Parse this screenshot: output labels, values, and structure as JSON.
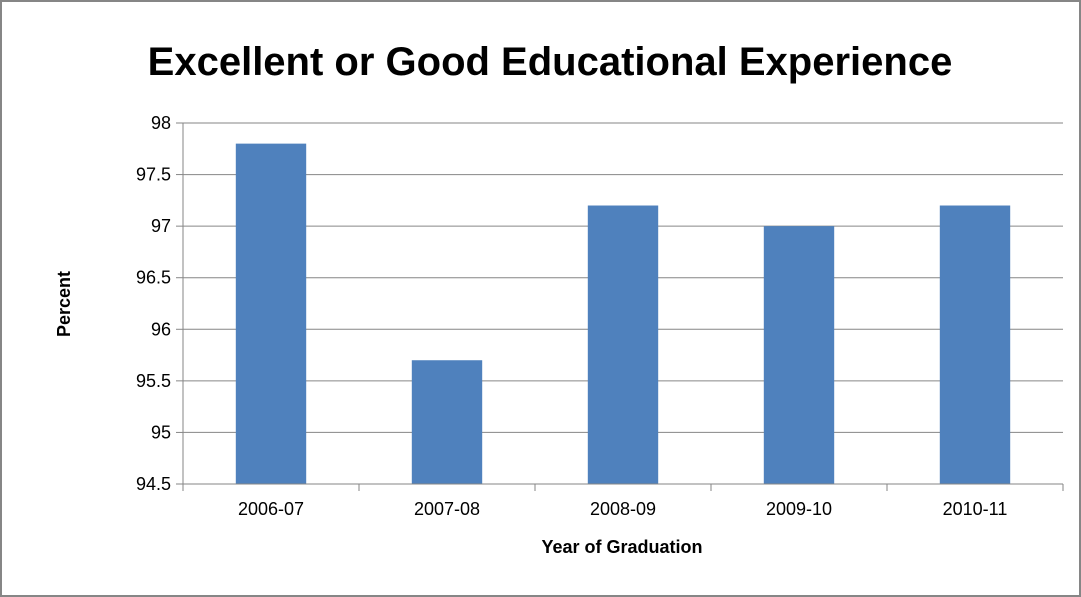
{
  "chart_data": {
    "type": "bar",
    "title": "Excellent or Good Educational Experience",
    "xlabel": "Year of Graduation",
    "ylabel": "Percent",
    "categories": [
      "2006-07",
      "2007-08",
      "2008-09",
      "2009-10",
      "2010-11"
    ],
    "values": [
      97.8,
      95.7,
      97.2,
      97.0,
      97.2
    ],
    "ylim": [
      94.5,
      98
    ],
    "yticks": [
      "94.5",
      "95",
      "95.5",
      "96",
      "96.5",
      "97",
      "97.5",
      "98"
    ],
    "ytick_values": [
      94.5,
      95,
      95.5,
      96,
      96.5,
      97,
      97.5,
      98
    ],
    "grid": true,
    "legend": "none",
    "colors": {
      "bar": "#4f81bd",
      "grid": "#868686",
      "axis": "#868686",
      "border": "#868686"
    }
  }
}
